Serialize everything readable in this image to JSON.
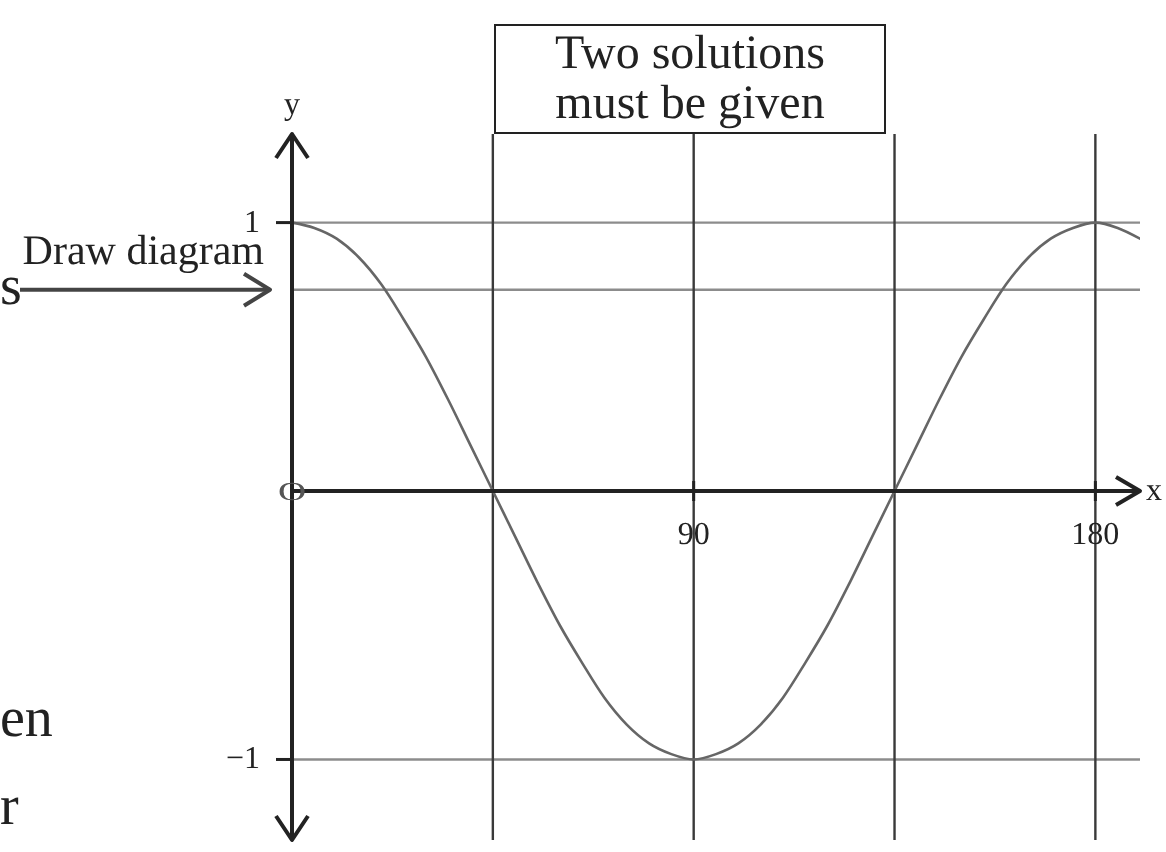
{
  "chart_data": {
    "type": "line",
    "xlabel": "x",
    "ylabel": "y",
    "x": [
      0,
      5,
      10,
      15,
      20,
      25,
      30,
      35,
      40,
      45,
      50,
      55,
      60,
      65,
      70,
      75,
      80,
      85,
      90,
      95,
      100,
      105,
      110,
      115,
      120,
      125,
      130,
      135,
      140,
      145,
      150,
      155,
      160,
      165,
      170,
      175,
      180,
      185,
      190
    ],
    "series": [
      {
        "color": "#666666",
        "values": [
          1,
          0.98,
          0.94,
          0.87,
          0.77,
          0.64,
          0.5,
          0.34,
          0.17,
          0,
          -0.17,
          -0.34,
          -0.5,
          -0.64,
          -0.77,
          -0.87,
          -0.94,
          -0.98,
          -1,
          -0.98,
          -0.94,
          -0.87,
          -0.77,
          -0.64,
          -0.5,
          -0.34,
          -0.17,
          0,
          0.17,
          0.34,
          0.5,
          0.64,
          0.77,
          0.87,
          0.94,
          0.98,
          1,
          0.98,
          0.94
        ]
      }
    ],
    "xlim": [
      0,
      190
    ],
    "ylim": [
      -1.3,
      1.33
    ],
    "xticks": [
      90,
      180
    ],
    "yticks": [
      -1,
      1
    ],
    "ref_lines": [
      {
        "axis": "y",
        "value": 1,
        "color": "#8c8c8c"
      },
      {
        "axis": "y",
        "value": 0.75,
        "color": "#8c8c8c"
      },
      {
        "axis": "y",
        "value": -1,
        "color": "#8c8c8c"
      },
      {
        "axis": "x",
        "value": 45,
        "color": "#3a3a3a"
      },
      {
        "axis": "x",
        "value": 90,
        "color": "#3a3a3a"
      },
      {
        "axis": "x",
        "value": 135,
        "color": "#3a3a3a"
      },
      {
        "axis": "x",
        "value": 180,
        "color": "#3a3a3a"
      }
    ],
    "annotations": [
      "Two solutions must be given",
      {
        "text": "Draw diagram",
        "x": 0,
        "y": 0.75
      },
      "O",
      "s",
      "en",
      "r"
    ]
  }
}
